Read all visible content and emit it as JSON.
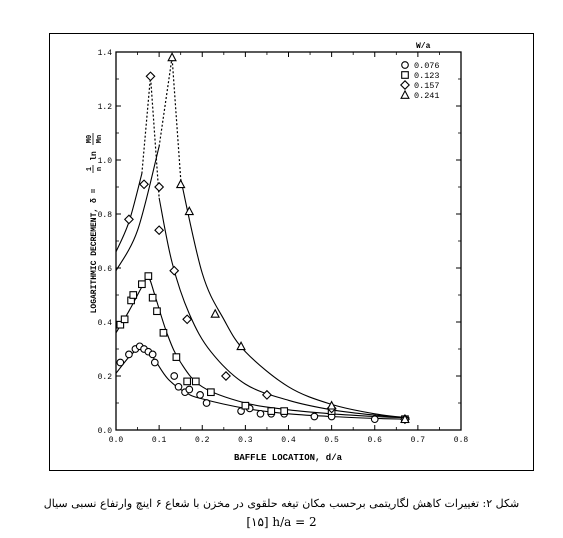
{
  "chart_data": {
    "type": "scatter",
    "title": "",
    "xlabel": "BAFFLE LOCATION, d/a",
    "ylabel": "LOGARITHMIC DECREMENT, δ = (1/n) ln (M0/Mn)",
    "ylabel_main": "LOGARITHMIC DECREMENT, δ =",
    "ylabel_formula": {
      "one": "1",
      "n": "n",
      "ln": "ln",
      "M0": "M0",
      "Mn": "Mn"
    },
    "xlim": [
      0.0,
      0.8
    ],
    "ylim": [
      0.0,
      1.4
    ],
    "xticks": [
      "0.0",
      "0.1",
      "0.2",
      "0.3",
      "0.4",
      "0.5",
      "0.6",
      "0.7",
      "0.8"
    ],
    "yticks": [
      "0.0",
      "0.2",
      "0.4",
      "0.6",
      "0.8",
      "1.0",
      "1.2",
      "1.4"
    ],
    "grid": false,
    "legend_title": "W/a",
    "legend_position": "top-right",
    "series": [
      {
        "name": "0.076",
        "marker": "circle",
        "points": [
          [
            0.01,
            0.25
          ],
          [
            0.03,
            0.28
          ],
          [
            0.045,
            0.3
          ],
          [
            0.055,
            0.31
          ],
          [
            0.065,
            0.3
          ],
          [
            0.075,
            0.29
          ],
          [
            0.085,
            0.28
          ],
          [
            0.09,
            0.25
          ],
          [
            0.135,
            0.2
          ],
          [
            0.145,
            0.16
          ],
          [
            0.16,
            0.14
          ],
          [
            0.17,
            0.15
          ],
          [
            0.195,
            0.13
          ],
          [
            0.21,
            0.1
          ],
          [
            0.29,
            0.07
          ],
          [
            0.31,
            0.08
          ],
          [
            0.335,
            0.06
          ],
          [
            0.36,
            0.06
          ],
          [
            0.39,
            0.06
          ],
          [
            0.46,
            0.05
          ],
          [
            0.5,
            0.05
          ],
          [
            0.6,
            0.04
          ],
          [
            0.67,
            0.04
          ]
        ],
        "curve": [
          [
            0.0,
            0.21
          ],
          [
            0.03,
            0.27
          ],
          [
            0.055,
            0.305
          ],
          [
            0.07,
            0.3
          ],
          [
            0.09,
            0.26
          ],
          [
            0.12,
            0.19
          ],
          [
            0.16,
            0.14
          ],
          [
            0.2,
            0.115
          ],
          [
            0.3,
            0.08
          ],
          [
            0.4,
            0.06
          ],
          [
            0.5,
            0.05
          ],
          [
            0.6,
            0.043
          ],
          [
            0.68,
            0.04
          ]
        ]
      },
      {
        "name": "0.123",
        "marker": "square",
        "points": [
          [
            0.01,
            0.39
          ],
          [
            0.02,
            0.41
          ],
          [
            0.035,
            0.48
          ],
          [
            0.04,
            0.5
          ],
          [
            0.06,
            0.54
          ],
          [
            0.075,
            0.57
          ],
          [
            0.085,
            0.49
          ],
          [
            0.095,
            0.44
          ],
          [
            0.11,
            0.36
          ],
          [
            0.14,
            0.27
          ],
          [
            0.165,
            0.18
          ],
          [
            0.185,
            0.18
          ],
          [
            0.22,
            0.14
          ],
          [
            0.3,
            0.09
          ],
          [
            0.36,
            0.07
          ],
          [
            0.39,
            0.07
          ],
          [
            0.5,
            0.07
          ],
          [
            0.67,
            0.04
          ]
        ],
        "curve": [
          [
            0.0,
            0.36
          ],
          [
            0.03,
            0.44
          ],
          [
            0.06,
            0.53
          ],
          [
            0.075,
            0.565
          ],
          [
            0.09,
            0.5
          ],
          [
            0.12,
            0.35
          ],
          [
            0.15,
            0.25
          ],
          [
            0.2,
            0.16
          ],
          [
            0.3,
            0.1
          ],
          [
            0.4,
            0.075
          ],
          [
            0.5,
            0.06
          ],
          [
            0.6,
            0.05
          ],
          [
            0.68,
            0.045
          ]
        ]
      },
      {
        "name": "0.157",
        "marker": "diamond",
        "points": [
          [
            0.03,
            0.78
          ],
          [
            0.065,
            0.91
          ],
          [
            0.08,
            1.31
          ],
          [
            0.1,
            0.9
          ],
          [
            0.1,
            0.74
          ],
          [
            0.135,
            0.59
          ],
          [
            0.165,
            0.41
          ],
          [
            0.255,
            0.2
          ],
          [
            0.35,
            0.13
          ],
          [
            0.5,
            0.08
          ],
          [
            0.67,
            0.04
          ]
        ],
        "curve": [
          [
            0.0,
            0.66
          ],
          [
            0.03,
            0.77
          ],
          [
            0.06,
            0.95
          ],
          [
            0.08,
            1.31
          ],
          [
            0.1,
            0.86
          ],
          [
            0.13,
            0.62
          ],
          [
            0.17,
            0.43
          ],
          [
            0.22,
            0.29
          ],
          [
            0.3,
            0.17
          ],
          [
            0.4,
            0.11
          ],
          [
            0.5,
            0.075
          ],
          [
            0.6,
            0.055
          ],
          [
            0.68,
            0.045
          ]
        ]
      },
      {
        "name": "0.241",
        "marker": "triangle",
        "points": [
          [
            0.13,
            1.38
          ],
          [
            0.15,
            0.91
          ],
          [
            0.17,
            0.81
          ],
          [
            0.23,
            0.43
          ],
          [
            0.29,
            0.31
          ],
          [
            0.5,
            0.09
          ],
          [
            0.67,
            0.04
          ]
        ],
        "curve": [
          [
            0.0,
            0.59
          ],
          [
            0.05,
            0.74
          ],
          [
            0.1,
            1.05
          ],
          [
            0.13,
            1.38
          ],
          [
            0.15,
            0.93
          ],
          [
            0.2,
            0.58
          ],
          [
            0.25,
            0.41
          ],
          [
            0.3,
            0.29
          ],
          [
            0.4,
            0.16
          ],
          [
            0.5,
            0.095
          ],
          [
            0.6,
            0.06
          ],
          [
            0.68,
            0.045
          ]
        ]
      }
    ]
  },
  "caption": {
    "line1": "شکل ۲: تغییرات کاهش لگاریتمی برحسب مکان تیغه حلقوی در مخزن با شعاع ۶ اینچ وارتفاع نسبی سیال",
    "line2": "[۱۵] h/a = 2"
  }
}
